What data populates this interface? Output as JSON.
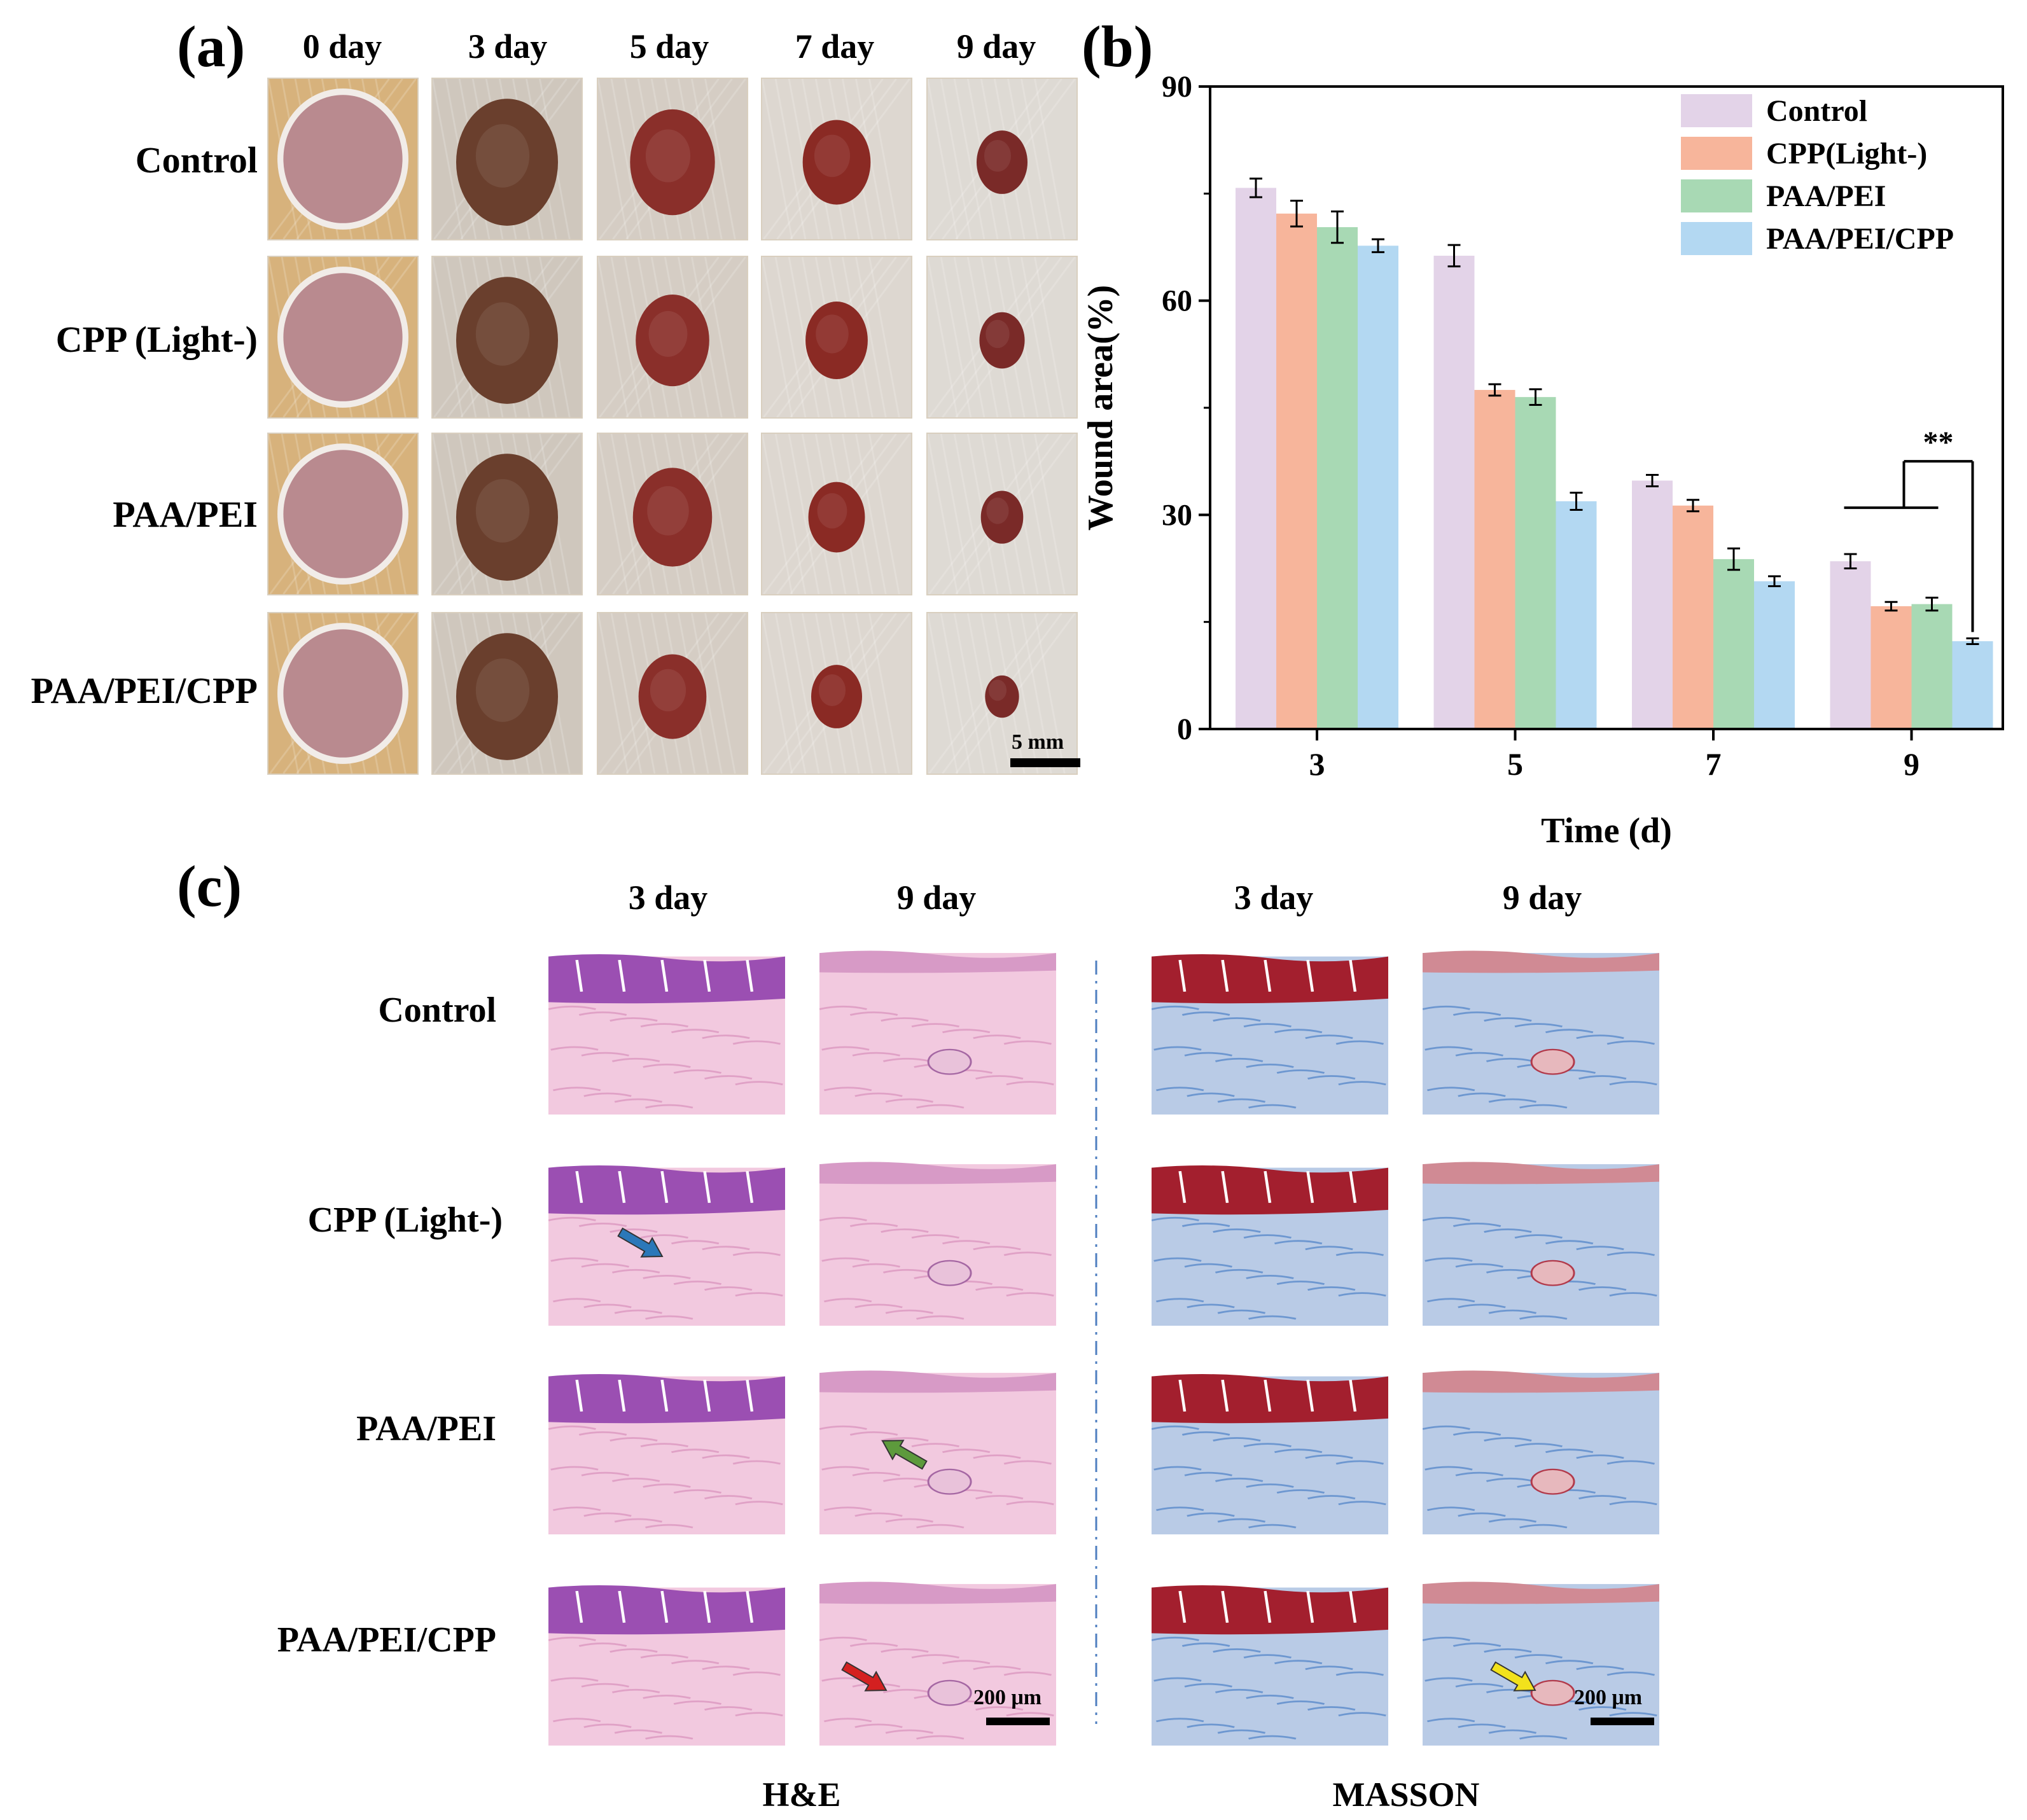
{
  "panel_a": {
    "label": "(a)",
    "day_headers": [
      "0 day",
      "3 day",
      "5 day",
      "7 day",
      "9 day"
    ],
    "row_labels": [
      "Control",
      "CPP (Light-)",
      "PAA/PEI",
      "PAA/PEI/CPP"
    ],
    "scale_bar": "5 mm"
  },
  "panel_b": {
    "label": "(b)"
  },
  "panel_c": {
    "label": "(c)",
    "day_headers": [
      "3 day",
      "9 day",
      "3 day",
      "9 day"
    ],
    "row_labels": [
      "Control",
      "CPP (Light-)",
      "PAA/PEI",
      "PAA/PEI/CPP"
    ],
    "scale_bar_he": "200 μm",
    "scale_bar_masson": "200 μm",
    "stain_he": "H&E",
    "stain_masson": "MASSON"
  },
  "chart_data": {
    "type": "bar",
    "title": "",
    "xlabel": "Time (d)",
    "ylabel": "Wound area(%)",
    "categories": [
      "3",
      "5",
      "7",
      "9"
    ],
    "ylim": [
      0,
      90
    ],
    "yticks": [
      "0",
      "30",
      "60",
      "90"
    ],
    "legend_position": "top-right",
    "series": [
      {
        "name": "Control",
        "color": "#E3D3E8",
        "values": [
          75.8,
          66.3,
          34.8,
          23.5
        ],
        "errors": [
          1.3,
          1.5,
          0.8,
          1.0
        ]
      },
      {
        "name": "CPP(Light-)",
        "color": "#F7B59B",
        "values": [
          72.2,
          47.5,
          31.3,
          17.2
        ],
        "errors": [
          1.8,
          0.8,
          0.8,
          0.6
        ]
      },
      {
        "name": "PAA/PEI",
        "color": "#A8D9B4",
        "values": [
          70.3,
          46.5,
          23.8,
          17.5
        ],
        "errors": [
          2.2,
          1.1,
          1.5,
          0.9
        ]
      },
      {
        "name": "PAA/PEI/CPP",
        "color": "#B3D8F2",
        "values": [
          67.7,
          31.9,
          20.7,
          12.3
        ],
        "errors": [
          0.9,
          1.2,
          0.7,
          0.4
        ]
      }
    ],
    "annotation": "**"
  }
}
